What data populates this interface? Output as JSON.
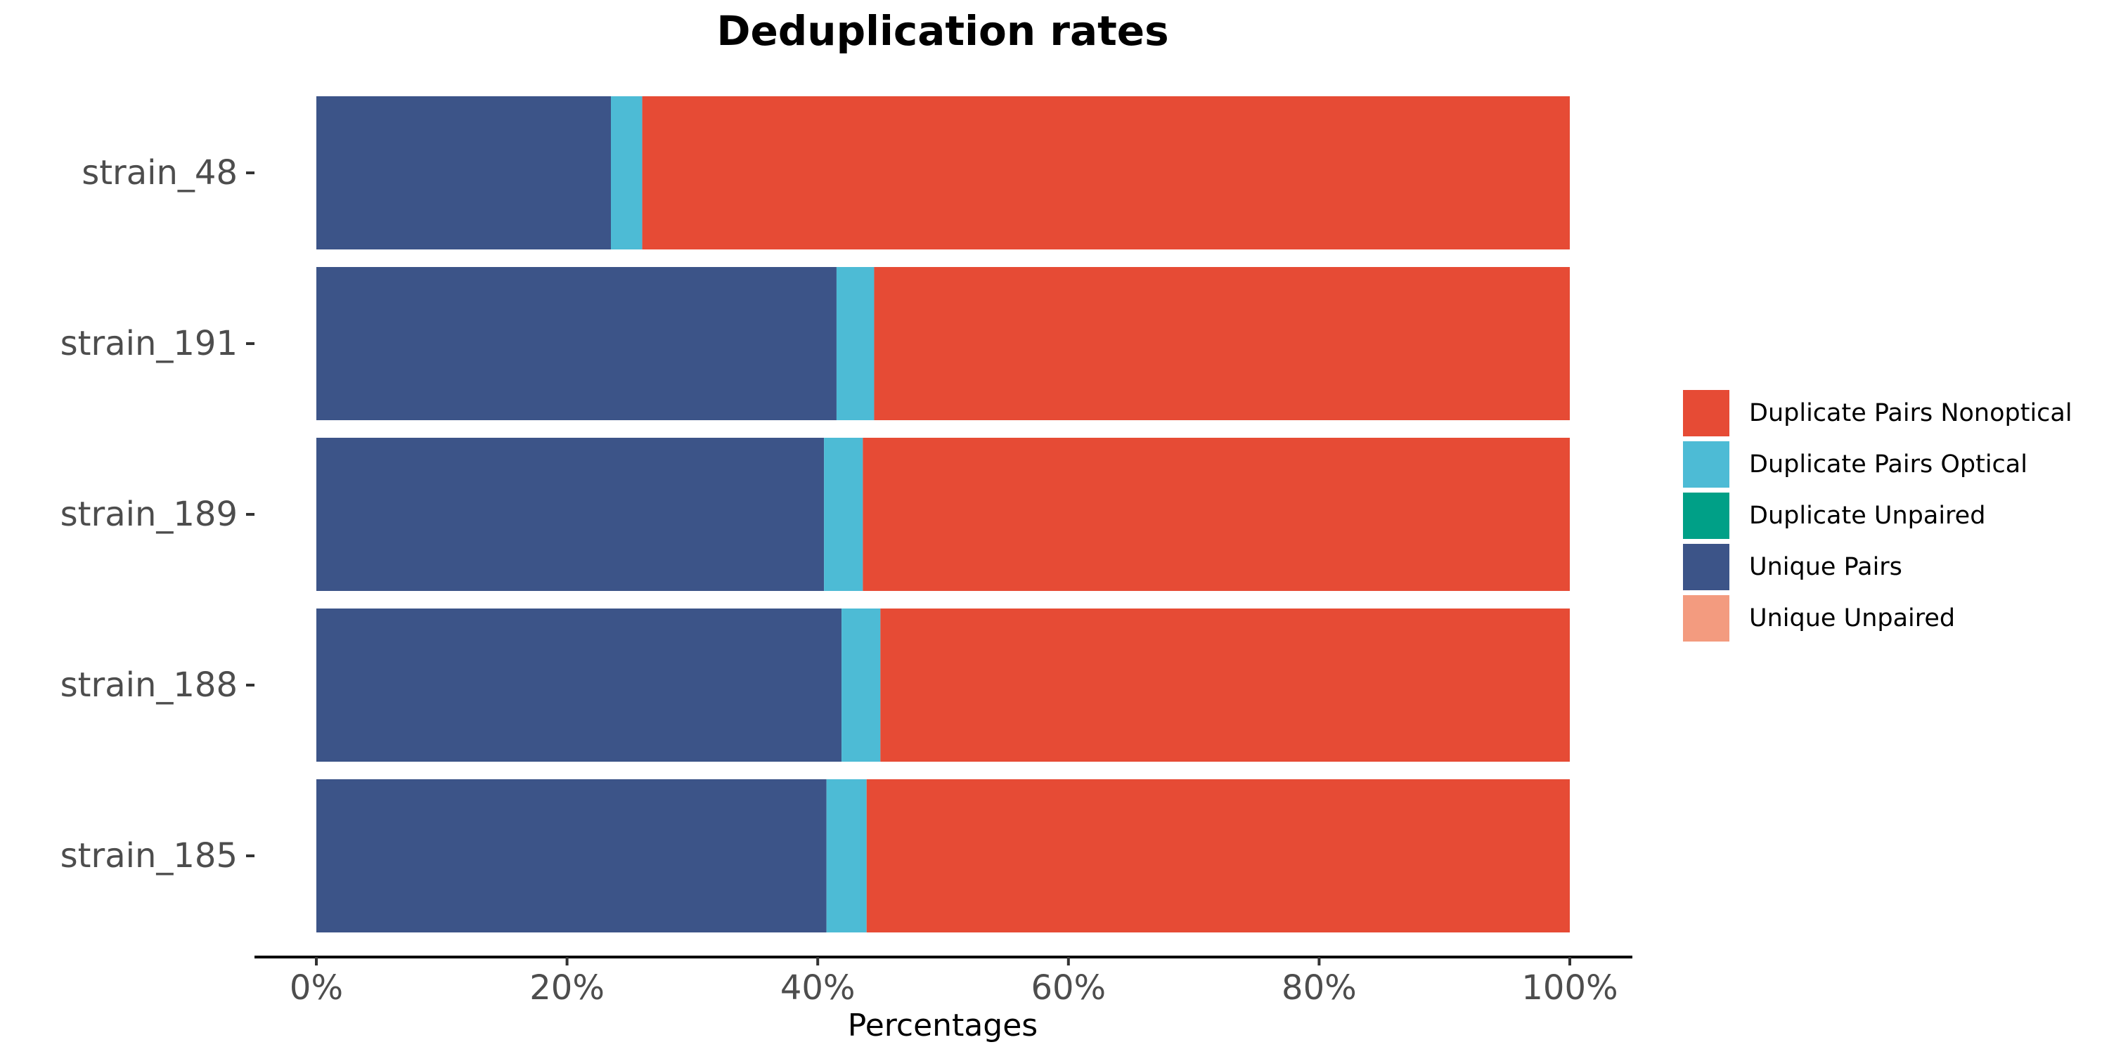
{
  "chart_data": {
    "type": "bar",
    "orientation": "horizontal",
    "stacked": true,
    "title": "Deduplication rates",
    "xlabel": "Percentages",
    "ylabel": "",
    "xlim": [
      0,
      100
    ],
    "x_ticks": [
      "0%",
      "20%",
      "40%",
      "60%",
      "80%",
      "100%"
    ],
    "grid": false,
    "legend_position": "right",
    "categories": [
      "strain_48",
      "strain_191",
      "strain_189",
      "strain_188",
      "strain_185"
    ],
    "series": [
      {
        "name": "Unique Pairs",
        "color": "#3c5488",
        "values": [
          23.5,
          41.5,
          40.5,
          41.9,
          40.7
        ]
      },
      {
        "name": "Duplicate Pairs Optical",
        "color": "#4dbbd5",
        "values": [
          2.5,
          3.0,
          3.1,
          3.1,
          3.2
        ]
      },
      {
        "name": "Duplicate Pairs Nonoptical",
        "color": "#e64b35",
        "values": [
          74.0,
          55.5,
          56.4,
          55.0,
          56.1
        ]
      },
      {
        "name": "Duplicate Unpaired",
        "color": "#00a087",
        "values": [
          0,
          0,
          0,
          0,
          0
        ]
      },
      {
        "name": "Unique Unpaired",
        "color": "#f39b7f",
        "values": [
          0,
          0,
          0,
          0,
          0
        ]
      }
    ],
    "legend": [
      {
        "name": "Duplicate Pairs Nonoptical",
        "color": "#e64b35"
      },
      {
        "name": "Duplicate Pairs Optical",
        "color": "#4dbbd5"
      },
      {
        "name": "Duplicate Unpaired",
        "color": "#00a087"
      },
      {
        "name": "Unique Pairs",
        "color": "#3c5488"
      },
      {
        "name": "Unique Unpaired",
        "color": "#f39b7f"
      }
    ]
  }
}
